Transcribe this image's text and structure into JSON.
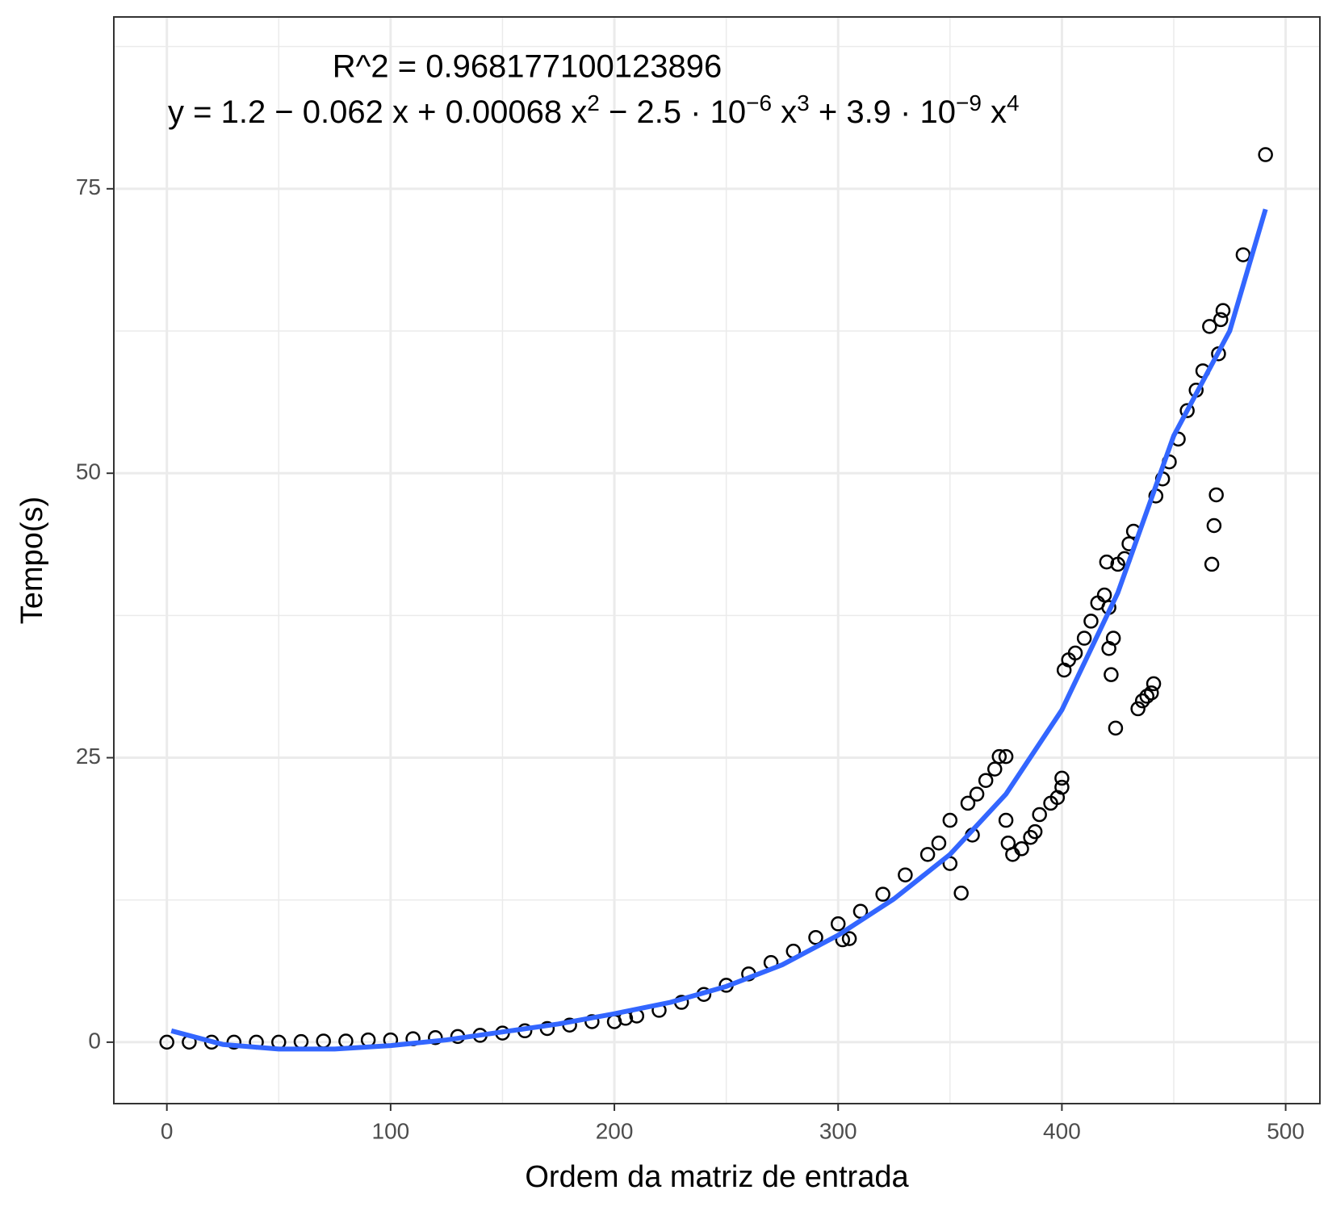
{
  "chart_data": {
    "type": "scatter",
    "x_label": "Ordem da matriz de entrada",
    "y_label": "Tempo(s)",
    "annotations": [
      "R^2 = 0.968177100123896"
    ],
    "equation": [
      "y = 1.2 − 0.062 x + 0.00068 x",
      "2",
      " − 2.5 · 10",
      "−6",
      " x",
      "3",
      " + 3.9 · 10",
      "−9",
      " x",
      "4"
    ],
    "xlim": [
      -23.7,
      515.3
    ],
    "ylim": [
      -5.4,
      90.1
    ],
    "xticks": [
      0,
      100,
      200,
      300,
      400,
      500
    ],
    "yticks": [
      0,
      25,
      50,
      75
    ],
    "xminor": [
      50,
      150,
      250,
      350,
      450
    ],
    "yminor": [
      12.5,
      37.5,
      62.5,
      87.5
    ],
    "grid": true,
    "point_color": "#000000",
    "series": [
      {
        "color": "#000000",
        "x": [
          0,
          10,
          20,
          30,
          40,
          50,
          60,
          70,
          80,
          90,
          100,
          110,
          120,
          130,
          140,
          150,
          160,
          170,
          180,
          190,
          200,
          205,
          210,
          220,
          230,
          240,
          250,
          260,
          270,
          280,
          290,
          300,
          302,
          305,
          310,
          320,
          330,
          340,
          345,
          350,
          350,
          355,
          358,
          360,
          362,
          366,
          370,
          372,
          375,
          375,
          376,
          378,
          382,
          386,
          388,
          390,
          395,
          398,
          400,
          400,
          401,
          403,
          406,
          410,
          413,
          416,
          419,
          420,
          421,
          421,
          422,
          423,
          424,
          425,
          428,
          430,
          432,
          434,
          436,
          438,
          440,
          441,
          442,
          445,
          448,
          452,
          456,
          460,
          463,
          466,
          467,
          468,
          469,
          470,
          471,
          472,
          481,
          491
        ],
        "y": [
          0,
          0,
          0,
          0,
          0,
          0,
          0.05,
          0.1,
          0.1,
          0.2,
          0.2,
          0.3,
          0.4,
          0.5,
          0.6,
          0.8,
          1.0,
          1.2,
          1.5,
          1.8,
          1.8,
          2.1,
          2.3,
          2.8,
          3.5,
          4.2,
          5.0,
          6.0,
          7.0,
          8.0,
          9.2,
          10.4,
          9.0,
          9.1,
          11.5,
          13.0,
          14.7,
          16.5,
          17.5,
          19.5,
          15.7,
          13.1,
          21.0,
          18.2,
          21.8,
          23.0,
          24.0,
          25.1,
          25.1,
          19.5,
          17.5,
          16.5,
          17.0,
          18.0,
          18.5,
          20.0,
          21.0,
          21.5,
          23.2,
          22.4,
          32.7,
          33.6,
          34.2,
          35.5,
          37.0,
          38.6,
          39.3,
          42.2,
          38.2,
          34.6,
          32.3,
          35.5,
          27.6,
          42.0,
          42.5,
          43.8,
          44.9,
          29.3,
          30.0,
          30.4,
          30.7,
          31.5,
          48.0,
          49.5,
          51.0,
          53.0,
          55.5,
          57.3,
          59.0,
          62.9,
          42.0,
          45.4,
          48.1,
          60.5,
          63.5,
          64.3,
          69.2,
          78.0
        ]
      }
    ],
    "fit": {
      "color": "#3366ff",
      "x": [
        2,
        25,
        50,
        75,
        100,
        125,
        150,
        175,
        200,
        225,
        250,
        275,
        300,
        325,
        350,
        375,
        400,
        425,
        450,
        475,
        491
      ],
      "y": [
        1.0,
        -0.2,
        -0.6,
        -0.6,
        -0.3,
        0.2,
        0.9,
        1.6,
        2.5,
        3.5,
        4.9,
        6.8,
        9.4,
        12.6,
        16.5,
        21.8,
        29.2,
        39.5,
        53.3,
        62.5,
        73.2
      ]
    }
  }
}
